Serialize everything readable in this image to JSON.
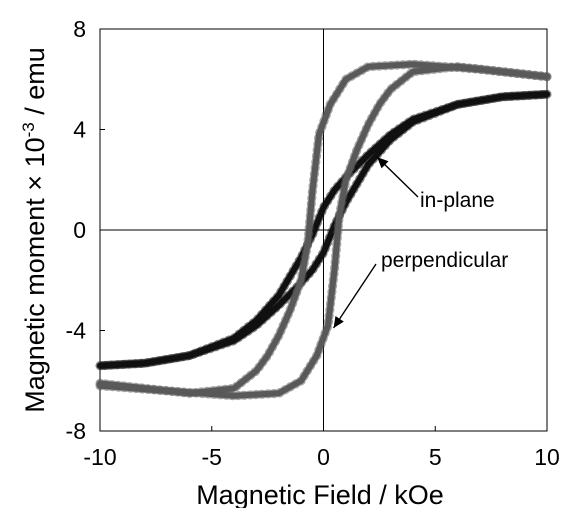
{
  "chart_data": {
    "type": "line",
    "xlabel": "Magnetic Field / kOe",
    "ylabel_main": "Magnetic moment ",
    "ylabel_times": "×",
    "ylabel_mid": " 10",
    "ylabel_exp": "-3",
    "ylabel_unit": " / emu",
    "xlim": [
      -10,
      10
    ],
    "ylim": [
      -8,
      8
    ],
    "x_ticks": [
      -10,
      -5,
      0,
      5,
      10
    ],
    "y_ticks": [
      -8,
      -4,
      0,
      4,
      8
    ],
    "x_tick_labels": [
      "-10",
      "-5",
      "0",
      "5",
      "10"
    ],
    "y_tick_labels": [
      "-8",
      "-4",
      "0",
      "4",
      "8"
    ],
    "grid": false,
    "zero_lines": true,
    "annotations": [
      {
        "text": "in-plane",
        "target": [
          2.4,
          2.9
        ]
      },
      {
        "text": "perpendicular",
        "target": [
          0.45,
          -3.9
        ]
      }
    ],
    "series": [
      {
        "color": "#111111",
        "branches": [
          {
            "x": [
              -10,
              -8,
              -6,
              -4,
              -3,
              -2,
              -1,
              -0.5,
              0,
              0.5,
              1,
              2,
              3,
              4,
              6,
              8,
              10
            ],
            "y": [
              -5.4,
              -5.3,
              -5.0,
              -4.3,
              -3.6,
              -2.6,
              -1.1,
              -0.2,
              0.9,
              1.6,
              2.1,
              3.0,
              3.8,
              4.4,
              5.0,
              5.3,
              5.4
            ]
          },
          {
            "x": [
              10,
              8,
              6,
              4,
              3,
              2,
              1,
              0.5,
              0,
              -0.5,
              -1,
              -2,
              -3,
              -4,
              -6,
              -8,
              -10
            ],
            "y": [
              5.4,
              5.3,
              5.0,
              4.3,
              3.6,
              2.6,
              1.1,
              0.2,
              -0.9,
              -1.6,
              -2.1,
              -3.0,
              -3.8,
              -4.4,
              -5.0,
              -5.3,
              -5.4
            ]
          }
        ]
      },
      {
        "color": "#595959",
        "branches": [
          {
            "x": [
              -10,
              -7,
              -4,
              -2,
              -1,
              -0.3,
              0.2,
              0.5,
              0.7,
              1.0,
              1.5,
              2,
              2.5,
              3,
              4,
              6,
              8,
              10
            ],
            "y": [
              -6.2,
              -6.4,
              -6.6,
              -6.5,
              -6.0,
              -5.0,
              -3.8,
              -1.5,
              0.5,
              2.0,
              3.2,
              4.2,
              5.0,
              5.6,
              6.3,
              6.5,
              6.3,
              6.1
            ]
          },
          {
            "x": [
              10,
              7,
              4,
              2,
              1,
              0.3,
              -0.2,
              -0.5,
              -0.7,
              -1.0,
              -1.5,
              -2,
              -2.5,
              -3,
              -4,
              -6,
              -8,
              -10
            ],
            "y": [
              6.1,
              6.4,
              6.6,
              6.5,
              6.0,
              5.0,
              3.8,
              1.5,
              -0.5,
              -2.0,
              -3.2,
              -4.2,
              -5.0,
              -5.6,
              -6.3,
              -6.5,
              -6.3,
              -6.1
            ]
          }
        ]
      }
    ]
  }
}
